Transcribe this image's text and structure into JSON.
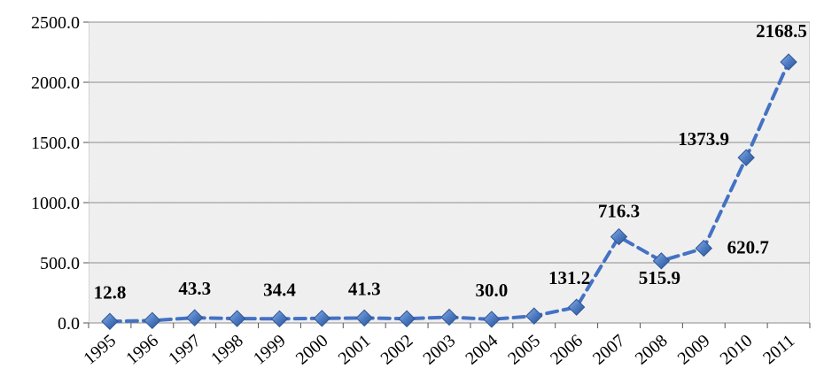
{
  "chart_data": {
    "type": "line",
    "title": "",
    "xlabel": "",
    "ylabel": "",
    "categories": [
      "1995",
      "1996",
      "1997",
      "1998",
      "1999",
      "2000",
      "2001",
      "2002",
      "2003",
      "2004",
      "2005",
      "2006",
      "2007",
      "2008",
      "2009",
      "2010",
      "2011"
    ],
    "series": [
      {
        "values": [
          12.8,
          20.0,
          43.3,
          36.0,
          34.4,
          38.0,
          41.3,
          35.0,
          48.0,
          30.0,
          58.0,
          131.2,
          716.3,
          515.9,
          620.7,
          1373.9,
          2168.5
        ],
        "data_labels": [
          "12.8",
          "",
          "43.3",
          "",
          "34.4",
          "",
          "41.3",
          "",
          "",
          "30.0",
          "",
          "131.2",
          "716.3",
          "515.9",
          "620.7",
          "1373.9",
          "2168.5"
        ]
      }
    ],
    "y_ticks": [
      "0.0",
      "500.0",
      "1000.0",
      "1500.0",
      "2000.0",
      "2500.0"
    ],
    "ylim": [
      0,
      2500
    ],
    "grid": true,
    "legend": "none",
    "line_color": "#4472C4",
    "marker_color": "#3F69A8",
    "plot_background": "#e9e9e9"
  }
}
